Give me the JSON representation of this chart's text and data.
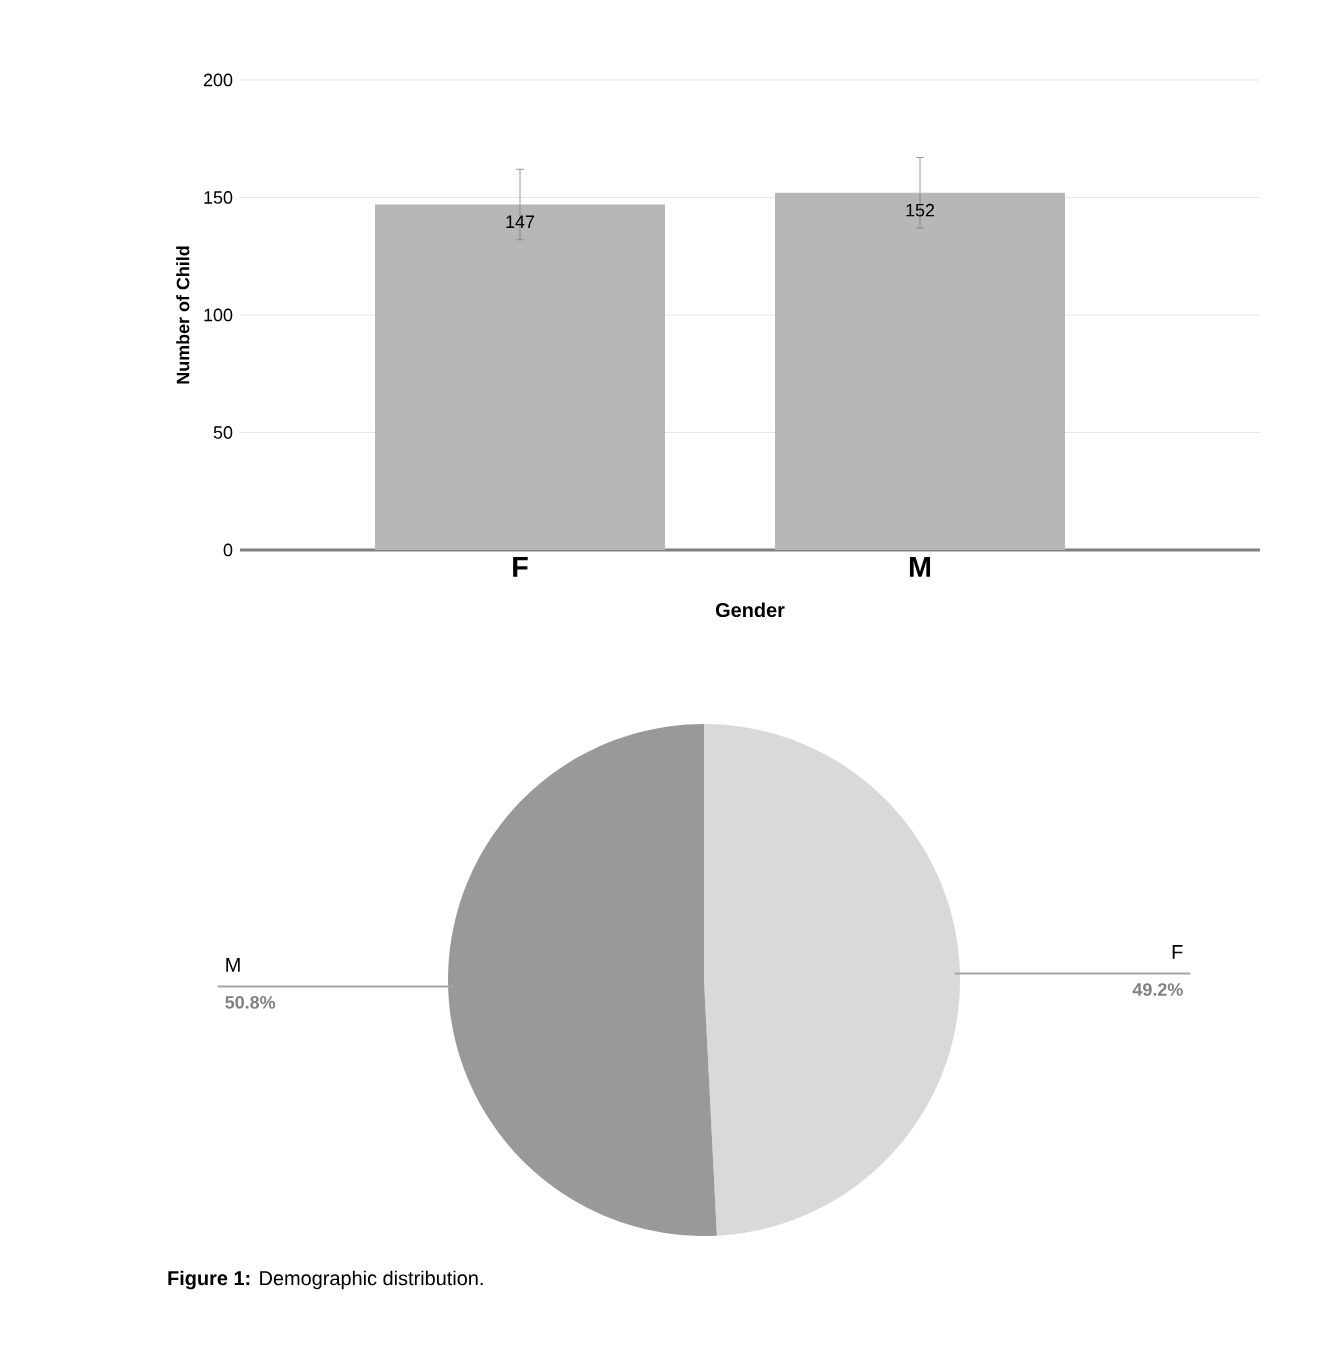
{
  "chart_data": [
    {
      "type": "bar",
      "xlabel": "Gender",
      "ylabel": "Number of Child",
      "categories": [
        "F",
        "M"
      ],
      "values": [
        147,
        152
      ],
      "errors": [
        15,
        15
      ],
      "color": "#b7b7b7",
      "ylim": [
        0,
        200
      ],
      "yticks": [
        0,
        50,
        100,
        150,
        200
      ],
      "grid": "y",
      "data_labels": true
    },
    {
      "type": "pie",
      "categories": [
        "F",
        "M"
      ],
      "values": [
        49.2,
        50.8
      ],
      "colors": [
        "#d9d9d9",
        "#999999"
      ],
      "value_labels": [
        "49.2%",
        "50.8%"
      ],
      "annotations": [
        "**Figure 1:** Demographic distribution."
      ]
    }
  ]
}
